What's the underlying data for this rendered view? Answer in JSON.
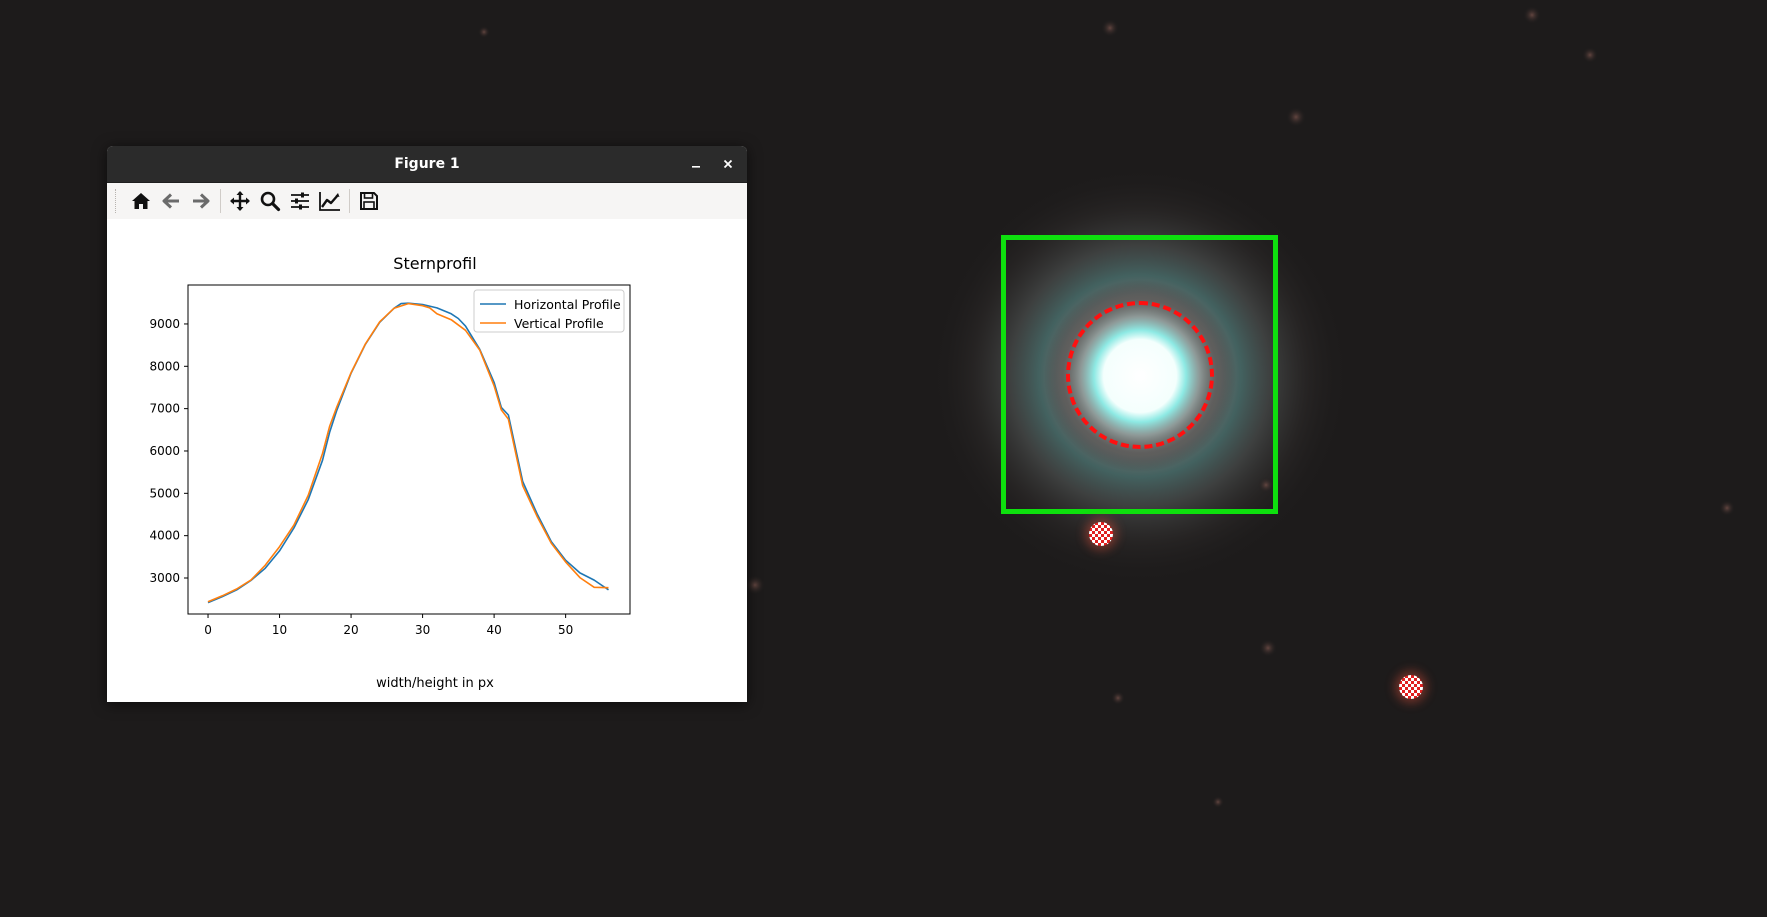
{
  "window": {
    "title": "Figure 1",
    "minimize_label": "–",
    "close_label": "×"
  },
  "toolbar": {
    "buttons": [
      {
        "name": "home",
        "icon": "home-icon"
      },
      {
        "name": "back",
        "icon": "arrow-left-icon"
      },
      {
        "name": "forward",
        "icon": "arrow-right-icon"
      },
      {
        "name": "pan",
        "icon": "move-icon"
      },
      {
        "name": "zoom",
        "icon": "magnifier-icon"
      },
      {
        "name": "subplots",
        "icon": "sliders-icon"
      },
      {
        "name": "edit-axes",
        "icon": "line-chart-icon"
      },
      {
        "name": "save",
        "icon": "floppy-disk-icon"
      }
    ]
  },
  "chart_data": {
    "type": "line",
    "title": "Sternprofil",
    "xlabel": "width/height in px",
    "ylabel": "",
    "xlim": [
      -2.8,
      59
    ],
    "ylim": [
      2150,
      9920
    ],
    "xticks": [
      0,
      10,
      20,
      30,
      40,
      50
    ],
    "yticks": [
      3000,
      4000,
      5000,
      6000,
      7000,
      8000,
      9000
    ],
    "legend": "top-right",
    "series": [
      {
        "name": "Horizontal Profile",
        "color": "#1f77b4",
        "x": [
          0,
          2,
          4,
          6,
          8,
          10,
          12,
          14,
          16,
          17,
          18,
          20,
          22,
          24,
          26,
          27,
          28,
          30,
          32,
          34,
          35,
          36,
          38,
          40,
          41,
          42,
          44,
          46,
          48,
          50,
          52,
          54,
          56
        ],
        "y": [
          2420,
          2560,
          2720,
          2940,
          3230,
          3640,
          4180,
          4850,
          5780,
          6440,
          6960,
          7840,
          8520,
          9040,
          9370,
          9480,
          9490,
          9460,
          9380,
          9240,
          9130,
          8950,
          8400,
          7620,
          7030,
          6850,
          5280,
          4520,
          3860,
          3420,
          3120,
          2950,
          2720
        ]
      },
      {
        "name": "Vertical Profile",
        "color": "#ff7f0e",
        "x": [
          0,
          2,
          4,
          6,
          8,
          10,
          12,
          14,
          16,
          17,
          18,
          20,
          22,
          24,
          26,
          28,
          30,
          31,
          32,
          34,
          36,
          38,
          40,
          41,
          42,
          44,
          46,
          48,
          50,
          52,
          54,
          56
        ],
        "y": [
          2440,
          2580,
          2740,
          2950,
          3300,
          3740,
          4250,
          4950,
          5940,
          6580,
          7040,
          7850,
          8530,
          9050,
          9370,
          9480,
          9430,
          9380,
          9240,
          9100,
          8850,
          8380,
          7540,
          6970,
          6750,
          5180,
          4460,
          3820,
          3380,
          3010,
          2780,
          2770
        ]
      }
    ]
  }
}
